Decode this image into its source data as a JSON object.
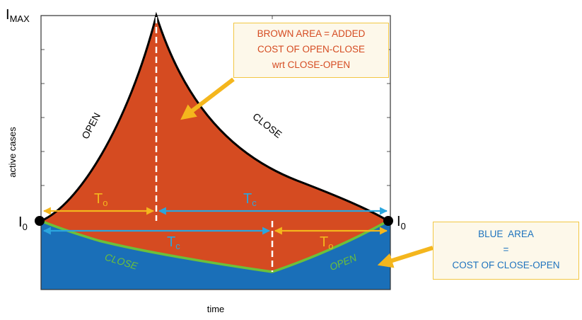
{
  "colors": {
    "brown_area": "#d54b21",
    "blue_area": "#1a6fb8",
    "outline": "#000000",
    "close_open_curve": "#6cc03a",
    "orange_arrow": "#f4b61d",
    "t_open": "#f4b61d",
    "t_close": "#2ba6de",
    "annotation_border": "#f2c744",
    "annotation_fill": "#fdf8ea",
    "brown_text": "#d54b21",
    "blue_text": "#1e73be"
  },
  "labels": {
    "y_axis": "active cases",
    "x_axis": "time",
    "i_max": "I",
    "i_max_sub": "MAX",
    "i0_left": "I",
    "i0_left_sub": "0",
    "i0_right": "I",
    "i0_right_sub": "0",
    "open_upper": "OPEN",
    "close_upper": "CLOSE",
    "close_lower": "CLOSE",
    "open_lower": "OPEN",
    "to_upper": "T",
    "to_upper_sub": "o",
    "tc_upper": "T",
    "tc_upper_sub": "c",
    "tc_lower": "T",
    "tc_lower_sub": "c",
    "to_lower": "T",
    "to_lower_sub": "o"
  },
  "brown_annotation": {
    "line1": "BROWN AREA = ADDED",
    "line2": "COST OF OPEN-CLOSE",
    "line3": "wrt CLOSE-OPEN"
  },
  "blue_annotation": {
    "line1": "BLUE  AREA",
    "line2": "=",
    "line3": "COST OF CLOSE-OPEN"
  }
}
